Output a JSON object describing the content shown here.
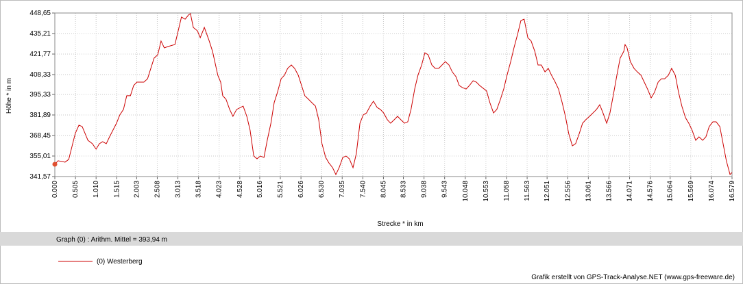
{
  "chart_data": {
    "type": "line",
    "ylabel": "Höhe *  in  m",
    "xlabel": "Strecke *  in  km",
    "summary": "Graph (0) :  Arithm. Mittel = 393,94 m",
    "credit": "Grafik erstellt von GPS-Track-Analyse.NET (www.gps-freeware.de)",
    "xlim": [
      0,
      16.579
    ],
    "ylim": [
      341.57,
      448.65
    ],
    "grid": true,
    "xticks": [
      {
        "value": 0,
        "label": "0.000"
      },
      {
        "value": 0.505,
        "label": "0.505"
      },
      {
        "value": 1.01,
        "label": "1.010"
      },
      {
        "value": 1.515,
        "label": "1.515"
      },
      {
        "value": 2.003,
        "label": "2.003"
      },
      {
        "value": 2.508,
        "label": "2.508"
      },
      {
        "value": 3.013,
        "label": "3.013"
      },
      {
        "value": 3.518,
        "label": "3.518"
      },
      {
        "value": 4.023,
        "label": "4.023"
      },
      {
        "value": 4.528,
        "label": "4.528"
      },
      {
        "value": 5.016,
        "label": "5.016"
      },
      {
        "value": 5.521,
        "label": "5.521"
      },
      {
        "value": 6.026,
        "label": "6.026"
      },
      {
        "value": 6.53,
        "label": "6.530"
      },
      {
        "value": 7.035,
        "label": "7.035"
      },
      {
        "value": 7.54,
        "label": "7.540"
      },
      {
        "value": 8.045,
        "label": "8.045"
      },
      {
        "value": 8.533,
        "label": "8.533"
      },
      {
        "value": 9.038,
        "label": "9.038"
      },
      {
        "value": 9.543,
        "label": "9.543"
      },
      {
        "value": 10.048,
        "label": "10.048"
      },
      {
        "value": 10.553,
        "label": "10.553"
      },
      {
        "value": 11.058,
        "label": "11.058"
      },
      {
        "value": 11.563,
        "label": "11.563"
      },
      {
        "value": 12.051,
        "label": "12.051"
      },
      {
        "value": 12.556,
        "label": "12.556"
      },
      {
        "value": 13.061,
        "label": "13.061"
      },
      {
        "value": 13.566,
        "label": "13.566"
      },
      {
        "value": 14.071,
        "label": "14.071"
      },
      {
        "value": 14.576,
        "label": "14.576"
      },
      {
        "value": 15.064,
        "label": "15.064"
      },
      {
        "value": 15.569,
        "label": "15.569"
      },
      {
        "value": 16.074,
        "label": "16.074"
      },
      {
        "value": 16.579,
        "label": "16.579"
      }
    ],
    "yticks": [
      {
        "value": 341.57,
        "label": "341,57"
      },
      {
        "value": 355.01,
        "label": "355,01"
      },
      {
        "value": 368.45,
        "label": "368,45"
      },
      {
        "value": 381.89,
        "label": "381,89"
      },
      {
        "value": 395.33,
        "label": "395,33"
      },
      {
        "value": 408.33,
        "label": "408,33"
      },
      {
        "value": 421.77,
        "label": "421,77"
      },
      {
        "value": 435.21,
        "label": "435,21"
      },
      {
        "value": 448.65,
        "label": "448,65"
      }
    ],
    "x": [
      0,
      0.08,
      0.25,
      0.34,
      0.5,
      0.59,
      0.67,
      0.81,
      0.92,
      1.01,
      1.09,
      1.17,
      1.26,
      1.34,
      1.51,
      1.59,
      1.68,
      1.76,
      1.85,
      1.93,
      2.01,
      2.18,
      2.27,
      2.35,
      2.43,
      2.52,
      2.6,
      2.68,
      2.77,
      2.94,
      3.02,
      3.1,
      3.19,
      3.27,
      3.32,
      3.39,
      3.49,
      3.56,
      3.66,
      3.78,
      3.86,
      3.99,
      4.06,
      4.11,
      4.19,
      4.28,
      4.36,
      4.45,
      4.61,
      4.7,
      4.78,
      4.87,
      4.95,
      5.03,
      5.12,
      5.2,
      5.29,
      5.37,
      5.45,
      5.54,
      5.62,
      5.7,
      5.79,
      5.87,
      5.96,
      6.04,
      6.12,
      6.21,
      6.29,
      6.38,
      6.46,
      6.54,
      6.63,
      6.71,
      6.8,
      6.88,
      6.96,
      7.05,
      7.13,
      7.21,
      7.3,
      7.38,
      7.47,
      7.55,
      7.63,
      7.72,
      7.8,
      7.89,
      7.97,
      8.05,
      8.14,
      8.22,
      8.31,
      8.39,
      8.47,
      8.56,
      8.64,
      8.72,
      8.81,
      8.89,
      8.98,
      9.06,
      9.14,
      9.23,
      9.31,
      9.4,
      9.48,
      9.56,
      9.65,
      9.73,
      9.82,
      9.9,
      9.98,
      10.07,
      10.15,
      10.24,
      10.32,
      10.4,
      10.57,
      10.65,
      10.74,
      10.82,
      10.91,
      10.99,
      11.07,
      11.16,
      11.24,
      11.33,
      11.41,
      11.49,
      11.58,
      11.66,
      11.75,
      11.83,
      11.91,
      12.0,
      12.08,
      12.16,
      12.25,
      12.33,
      12.42,
      12.5,
      12.58,
      12.67,
      12.75,
      12.84,
      12.92,
      13.0,
      13.09,
      13.26,
      13.34,
      13.42,
      13.51,
      13.59,
      13.67,
      13.76,
      13.84,
      13.93,
      13.96,
      14.01,
      14.09,
      14.18,
      14.26,
      14.35,
      14.43,
      14.51,
      14.6,
      14.68,
      14.77,
      14.85,
      14.93,
      15.02,
      15.1,
      15.19,
      15.27,
      15.35,
      15.44,
      15.52,
      15.6,
      15.69,
      15.77,
      15.86,
      15.94,
      16.02,
      16.11,
      16.19,
      16.28,
      16.36,
      16.44,
      16.53,
      16.579
    ],
    "series": [
      {
        "name": "(0) Westerberg",
        "color": "#cc0000",
        "values": [
          349.6,
          351.9,
          351.0,
          352.8,
          369.8,
          375.2,
          374.3,
          365.3,
          363.1,
          359.5,
          363.1,
          364.4,
          363.1,
          367.6,
          376.5,
          381.9,
          385.5,
          394.5,
          394.5,
          401.2,
          403.4,
          403.4,
          405.6,
          412.4,
          419.1,
          421.3,
          430.3,
          425.8,
          426.7,
          428.0,
          437.0,
          446.0,
          444.6,
          447.3,
          448.2,
          439.2,
          437.0,
          432.5,
          439.2,
          430.3,
          423.6,
          407.9,
          403.4,
          394.5,
          392.2,
          385.5,
          381.0,
          385.5,
          387.7,
          381.0,
          372.0,
          355.0,
          353.2,
          355.0,
          354.1,
          365.3,
          376.5,
          390.0,
          396.7,
          405.6,
          407.9,
          412.4,
          414.6,
          412.4,
          407.9,
          401.2,
          394.5,
          392.2,
          390.0,
          387.7,
          378.8,
          363.1,
          354.1,
          350.5,
          347.4,
          342.9,
          347.4,
          354.1,
          355.0,
          353.2,
          347.4,
          356.4,
          376.5,
          381.9,
          383.2,
          387.7,
          390.9,
          386.8,
          385.5,
          383.2,
          378.8,
          376.5,
          378.8,
          381.0,
          378.8,
          376.5,
          377.4,
          385.5,
          398.9,
          407.9,
          414.6,
          422.6,
          421.3,
          414.6,
          412.4,
          412.4,
          414.6,
          416.8,
          414.6,
          410.1,
          407.0,
          401.2,
          399.8,
          398.9,
          401.2,
          404.3,
          403.4,
          401.2,
          397.6,
          390.0,
          383.2,
          385.5,
          392.2,
          398.9,
          407.9,
          416.8,
          425.8,
          434.8,
          443.7,
          444.6,
          432.5,
          430.3,
          423.6,
          414.6,
          414.6,
          410.1,
          412.4,
          407.9,
          403.4,
          398.9,
          390.0,
          381.0,
          369.8,
          361.7,
          363.1,
          369.8,
          376.5,
          378.8,
          381.0,
          385.5,
          388.6,
          383.2,
          376.5,
          383.2,
          394.5,
          407.9,
          419.1,
          423.6,
          428.0,
          425.8,
          416.8,
          412.4,
          410.1,
          407.9,
          403.4,
          398.9,
          393.1,
          396.7,
          403.4,
          405.6,
          405.6,
          407.9,
          412.4,
          407.9,
          396.7,
          387.7,
          380.1,
          376.5,
          372.0,
          365.3,
          367.6,
          365.3,
          367.6,
          374.3,
          377.4,
          377.4,
          374.3,
          363.1,
          351.9,
          342.9,
          344.3
        ]
      }
    ]
  }
}
